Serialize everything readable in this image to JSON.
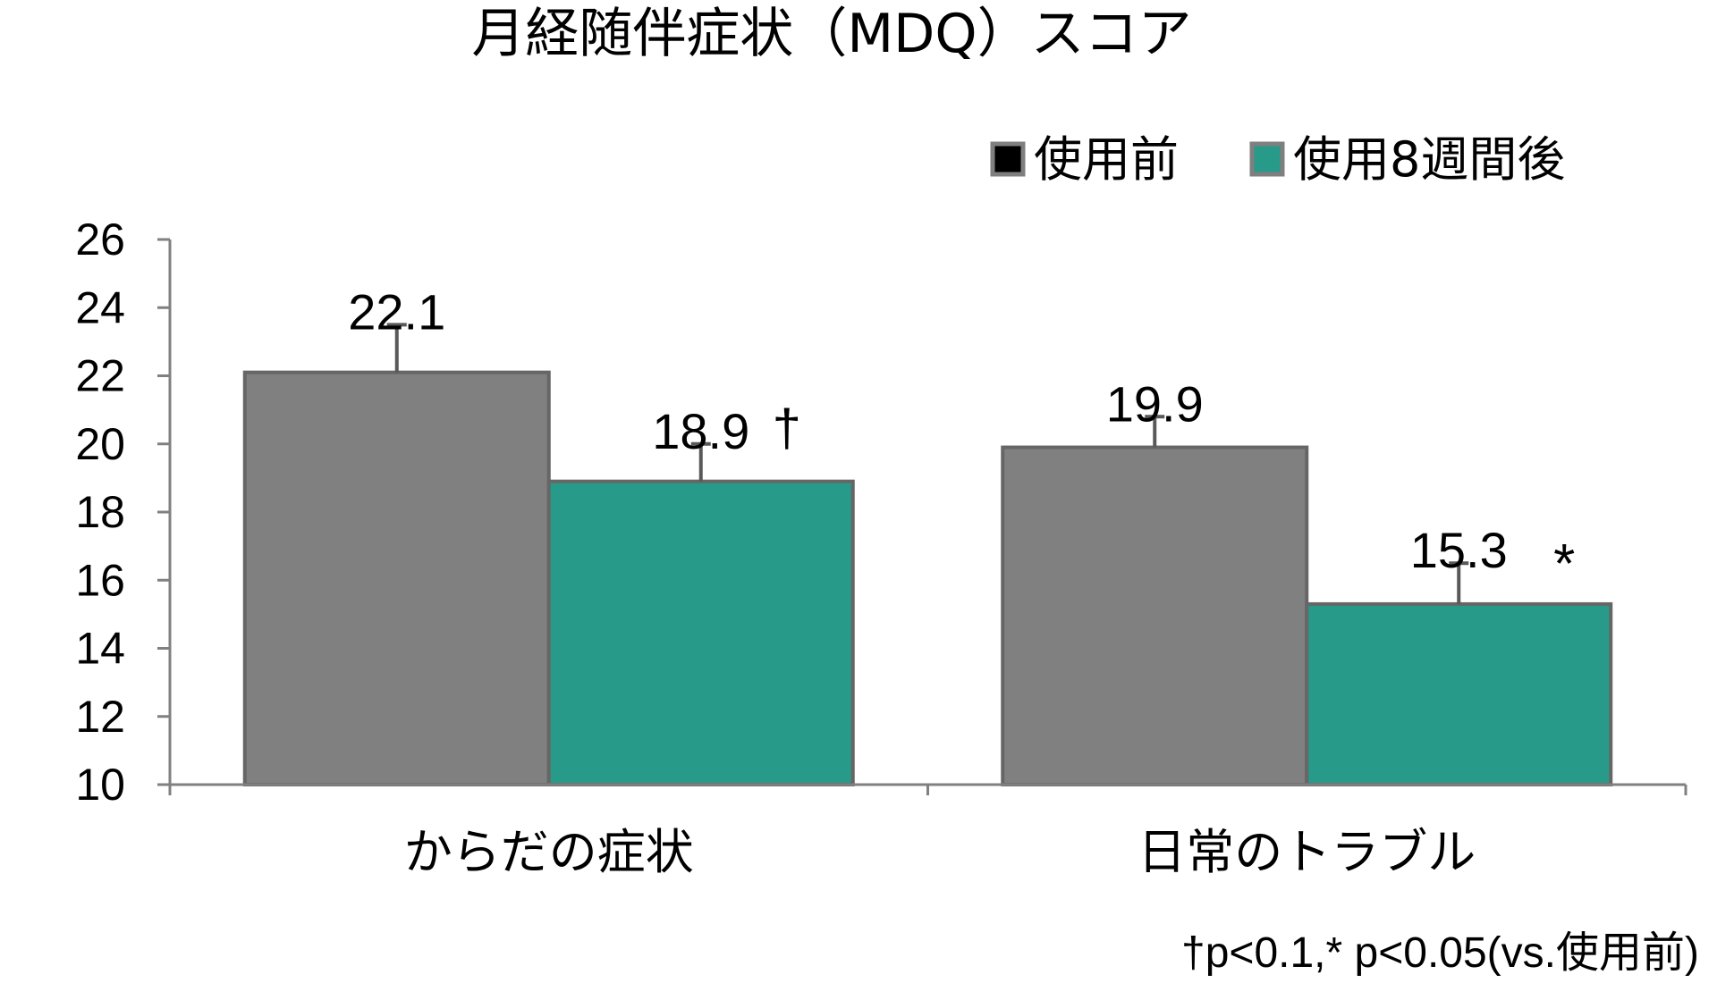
{
  "chart_data": {
    "type": "bar",
    "title": "月経随伴症状（MDQ）スコア",
    "categories": [
      "からだの症状",
      "日常のトラブル"
    ],
    "series": [
      {
        "name": "使用前",
        "values": [
          22.1,
          19.9
        ],
        "error": [
          1.4,
          0.9
        ],
        "labels": [
          "22.1",
          "19.9"
        ],
        "markers": [
          "",
          ""
        ],
        "color": "#808080"
      },
      {
        "name": "使用8週間後",
        "values": [
          18.9,
          15.3
        ],
        "error": [
          1.1,
          1.2
        ],
        "labels": [
          "18.9",
          "15.3"
        ],
        "markers": [
          "†",
          "*"
        ],
        "color": "#279A89"
      }
    ],
    "ylim": [
      10,
      26
    ],
    "yticks": [
      10,
      12,
      14,
      16,
      18,
      20,
      22,
      24,
      26
    ],
    "legend_position": "top-right",
    "grid": false,
    "footnote": "†p<0.1,* p<0.05(vs.使用前)",
    "axis_color": "#808080",
    "error_color": "#595959",
    "bar_outline": "#666666"
  }
}
